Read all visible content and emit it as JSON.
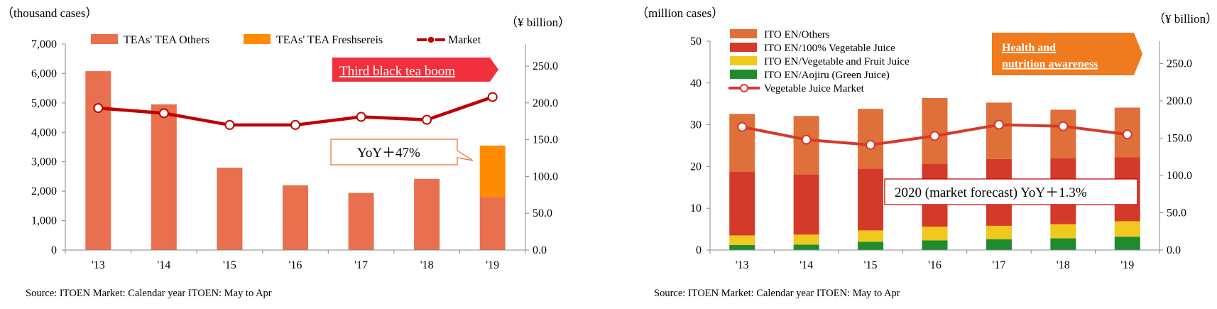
{
  "chart_data": [
    {
      "type": "bar",
      "y_unit_label": "（thousand cases）",
      "y2_unit_label": "（¥ billion）",
      "categories": [
        "'13",
        "'14",
        "'15",
        "'16",
        "'17",
        "'18",
        "'19"
      ],
      "ylim": [
        0,
        7000
      ],
      "y_ticks": [
        "0",
        "1,000",
        "2,000",
        "3,000",
        "4,000",
        "5,000",
        "6,000",
        "7,000"
      ],
      "y2lim": [
        0,
        280
      ],
      "y2_ticks": [
        "0.0",
        "50.0",
        "100.0",
        "150.0",
        "200.0",
        "250.0"
      ],
      "stacked": true,
      "series": [
        {
          "name": "TEAs' TEA Others",
          "color": "#E8704F",
          "values": [
            6080,
            4950,
            2800,
            2200,
            1940,
            2420,
            1800
          ]
        },
        {
          "name": "TEAs' TEA Freshsereis",
          "color": "#FF8C00",
          "values": [
            0,
            0,
            0,
            0,
            0,
            0,
            1750
          ]
        }
      ],
      "line_series": {
        "name": "Market",
        "color": "#C00000",
        "axis": "right",
        "values": [
          193,
          186,
          170,
          170,
          181,
          177,
          208
        ]
      },
      "annotations": [
        {
          "id": "boom",
          "text": "Third black tea boom",
          "bg": "#F0303C",
          "color": "#ffffff"
        },
        {
          "id": "yoy",
          "text": "YoY＋47%",
          "border": "#E87030",
          "color": "#000000"
        }
      ],
      "source": "Source: ITOEN   Market: Calendar year  ITOEN: May to Apr"
    },
    {
      "type": "bar",
      "y_unit_label": "（million cases）",
      "y2_unit_label": "（¥ billion）",
      "categories": [
        "'13",
        "'14",
        "'15",
        "'16",
        "'17",
        "'18",
        "'19"
      ],
      "ylim": [
        0,
        50
      ],
      "y_ticks": [
        "0",
        "10",
        "20",
        "30",
        "40",
        "50"
      ],
      "y2lim": [
        0,
        280
      ],
      "y2_ticks": [
        "0.0",
        "50.0",
        "100.0",
        "150.0",
        "200.0",
        "250.0"
      ],
      "stacked": true,
      "series": [
        {
          "name": "ITO EN/Aojiru (Green Juice)",
          "color": "#1E8C2E",
          "values": [
            1.2,
            1.3,
            2.0,
            2.3,
            2.6,
            2.8,
            3.2
          ]
        },
        {
          "name": "ITO EN/Vegetable and Fruit Juice",
          "color": "#F0C81E",
          "values": [
            2.3,
            2.4,
            2.7,
            3.3,
            3.2,
            3.4,
            3.7
          ]
        },
        {
          "name": "ITO EN/100% Vegetable Juice",
          "color": "#D43A2A",
          "values": [
            15.2,
            14.4,
            14.8,
            15.1,
            16.0,
            15.8,
            15.3
          ]
        },
        {
          "name": "ITO EN/Others",
          "color": "#E0703A",
          "values": [
            13.9,
            14.0,
            14.3,
            15.7,
            13.5,
            11.6,
            11.9
          ]
        }
      ],
      "legend_order": [
        "ITO EN/Others",
        "ITO EN/100% Vegetable Juice",
        "ITO EN/Vegetable and Fruit Juice",
        "ITO EN/Aojiru (Green Juice)"
      ],
      "line_series": {
        "name": "Vegetable Juice Market",
        "color": "#D43A2A",
        "axis": "right",
        "values": [
          165,
          148,
          141,
          153,
          168,
          166,
          155
        ]
      },
      "annotations": [
        {
          "id": "health_l1",
          "text": "Health and",
          "bg": "#F07A1E",
          "color": "#ffffff"
        },
        {
          "id": "health_l2",
          "text": "nutrition awareness",
          "bg": "#F07A1E",
          "color": "#ffffff"
        },
        {
          "id": "forecast",
          "text": "2020 (market forecast)   YoY＋1.3%",
          "border": "#C00000",
          "color": "#000000"
        }
      ],
      "source": "Source: ITOEN   Market: Calendar year  ITOEN: May to Apr"
    }
  ]
}
